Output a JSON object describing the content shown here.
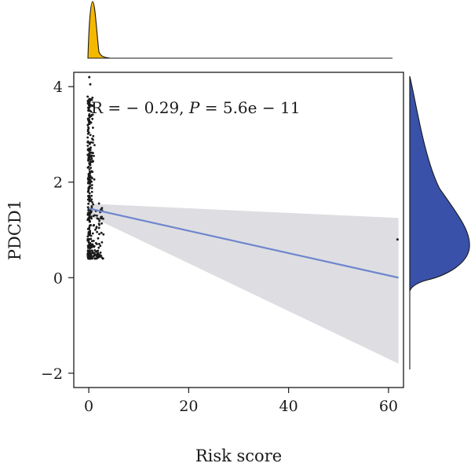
{
  "chart_data": {
    "type": "scatter",
    "xlabel": "Risk score",
    "ylabel": "PDCD1",
    "xlim": [
      -3,
      63
    ],
    "ylim": [
      -2.3,
      4.3
    ],
    "x_ticks": [
      "0",
      "20",
      "40",
      "60"
    ],
    "y_ticks": [
      "4",
      "2",
      "0",
      "−2"
    ],
    "annotation": {
      "prefix": "R = − 0.29, ",
      "p_symbol": "P",
      "suffix": " = 5.6e − 11"
    },
    "regression": {
      "x_start": 0,
      "y_start": 1.45,
      "x_end": 62,
      "y_end": 0.0,
      "ci_upper_start": 1.55,
      "ci_upper_end": 1.25,
      "ci_lower_start": 1.3,
      "ci_lower_end": -1.8
    },
    "outlier_points": [
      {
        "x": 0.1,
        "y": 4.2
      },
      {
        "x": 0.3,
        "y": 4.05
      },
      {
        "x": 61.8,
        "y": 0.8
      }
    ],
    "main_cluster": {
      "x_range": [
        0,
        3
      ],
      "y_range": [
        0.4,
        3.8
      ],
      "center_y": 1.0
    },
    "colors": {
      "points": "#1a1a1a",
      "line": "#6f86cc",
      "ci_band": "#dedee2",
      "top_density": "#f5b800",
      "right_density": "#3951a8",
      "axis": "#1a1a1a"
    },
    "grid": false,
    "legend": "none"
  }
}
